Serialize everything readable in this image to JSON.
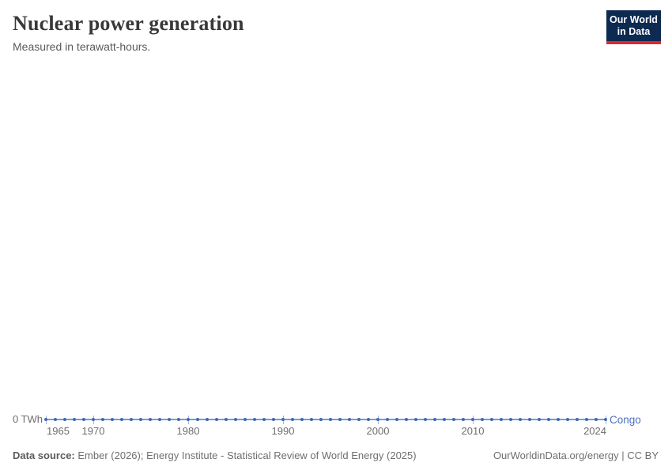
{
  "header": {
    "title": "Nuclear power generation",
    "subtitle": "Measured in terawatt-hours."
  },
  "logo": {
    "line1": "Our World",
    "line2": "in Data",
    "bg_color": "#0d2a51",
    "bar_color": "#e2262c"
  },
  "chart_data": {
    "type": "line",
    "title": "Nuclear power generation",
    "subtitle": "Measured in terawatt-hours.",
    "unit": "TWh",
    "x_range": [
      1965,
      2024
    ],
    "x_ticks": [
      1965,
      1970,
      1980,
      1990,
      2000,
      2010,
      2024
    ],
    "y_ticks": [
      "0 TWh"
    ],
    "y_zero_label": "0 TWh",
    "ylim": [
      0,
      0
    ],
    "grid": false,
    "legend_position": "end-of-line-label",
    "series": [
      {
        "name": "Congo",
        "label_color": "#4c70c4",
        "line_color": "#7e99d0",
        "marker_color": "#4368b2",
        "x": [
          1965,
          1966,
          1967,
          1968,
          1969,
          1970,
          1971,
          1972,
          1973,
          1974,
          1975,
          1976,
          1977,
          1978,
          1979,
          1980,
          1981,
          1982,
          1983,
          1984,
          1985,
          1986,
          1987,
          1988,
          1989,
          1990,
          1991,
          1992,
          1993,
          1994,
          1995,
          1996,
          1997,
          1998,
          1999,
          2000,
          2001,
          2002,
          2003,
          2004,
          2005,
          2006,
          2007,
          2008,
          2009,
          2010,
          2011,
          2012,
          2013,
          2014,
          2015,
          2016,
          2017,
          2018,
          2019,
          2020,
          2021,
          2022,
          2023,
          2024
        ],
        "values": [
          0,
          0,
          0,
          0,
          0,
          0,
          0,
          0,
          0,
          0,
          0,
          0,
          0,
          0,
          0,
          0,
          0,
          0,
          0,
          0,
          0,
          0,
          0,
          0,
          0,
          0,
          0,
          0,
          0,
          0,
          0,
          0,
          0,
          0,
          0,
          0,
          0,
          0,
          0,
          0,
          0,
          0,
          0,
          0,
          0,
          0,
          0,
          0,
          0,
          0,
          0,
          0,
          0,
          0,
          0,
          0,
          0,
          0,
          0,
          0
        ]
      }
    ],
    "axis_tick_color": "#a9b8d8",
    "axis_text_color": "#6e6e6e"
  },
  "footer": {
    "source_label": "Data source:",
    "source_text": "Ember (2026); Energy Institute - Statistical Review of World Energy (2025)",
    "credit": "OurWorldinData.org/energy | CC BY"
  }
}
